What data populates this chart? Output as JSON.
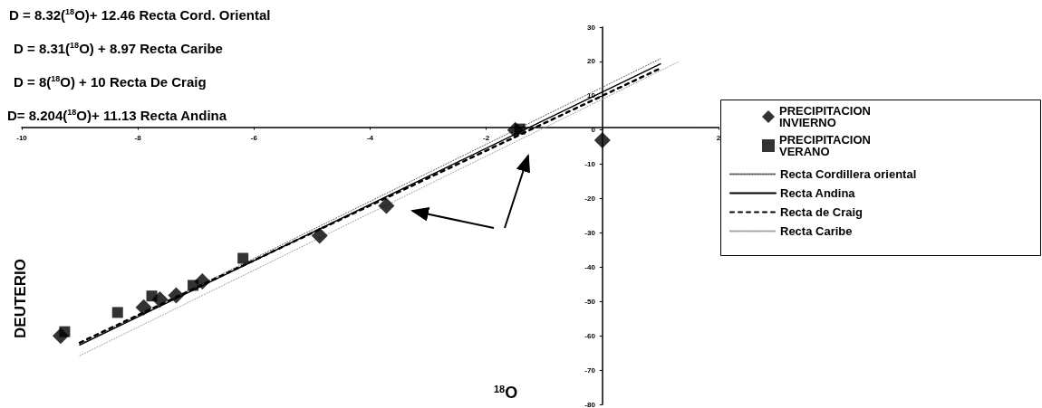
{
  "chart_data": {
    "type": "scatter",
    "xlabel": "$^{18}$O",
    "ylabel": "DEUTERIO",
    "annotations": [
      "D = 8.32($^{18}$O)+ 12.46 Recta Cord. Oriental",
      "D = 8.31($^{18}$O) + 8.97 Recta Caribe",
      "D = 8($^{18}$O) + 10 Recta De Craig",
      "D= 8.204($^{18}$O)+ 11.13 Recta Andina"
    ],
    "xlim": [
      -10,
      2
    ],
    "xticks": [
      -10,
      -8,
      -6,
      -4,
      -2,
      {
        "value": 0,
        "label": null
      },
      2
    ],
    "ylim": [
      -80,
      30
    ],
    "yticks": [
      -80,
      -70,
      -60,
      -50,
      -40,
      -30,
      -20,
      -10,
      0,
      10,
      20,
      30
    ],
    "legend": "right",
    "series": [
      {
        "name": "PRECIPITACION INVIERNO",
        "marker": "diamond",
        "color": "#000000",
        "x": [
          -9.33,
          -7.9,
          -7.62,
          -7.34,
          -6.89,
          -4.87,
          -3.72,
          -1.5,
          0
        ],
        "values": [
          -60,
          -51.7,
          -49.4,
          -48.2,
          -44.1,
          -30.8,
          -22.1,
          0,
          -3
        ]
      },
      {
        "name": "PRECIPITACION VERANO",
        "marker": "square",
        "color": "#000000",
        "x": [
          -9.26,
          -8.35,
          -7.76,
          -7.05,
          -6.19,
          -1.42
        ],
        "values": [
          -58.8,
          -53.2,
          -48.4,
          -45.3,
          -37.4,
          0.3
        ]
      },
      {
        "name": "Recta Cordillera oriental",
        "type": "line",
        "marker": "none",
        "line_style": "dotted",
        "color": "#555555",
        "x": [
          -9,
          1
        ],
        "values": [
          -62.4,
          20.8
        ]
      },
      {
        "name": "Recta Andina",
        "type": "line",
        "marker": "none",
        "line_style": "solid",
        "color": "#000000",
        "x": [
          -9,
          1
        ],
        "values": [
          -62.7,
          19.3
        ]
      },
      {
        "name": "Recta de Craig",
        "type": "line",
        "marker": "none",
        "line_style": "dashed",
        "color": "#000000",
        "x": [
          -9,
          1
        ],
        "values": [
          -62,
          18
        ]
      },
      {
        "name": "Recta Caribe",
        "type": "line",
        "marker": "none",
        "line_style": "dotted",
        "color": "#999999",
        "x": [
          -9,
          1.3
        ],
        "values": [
          -65.8,
          19.8
        ]
      }
    ]
  }
}
